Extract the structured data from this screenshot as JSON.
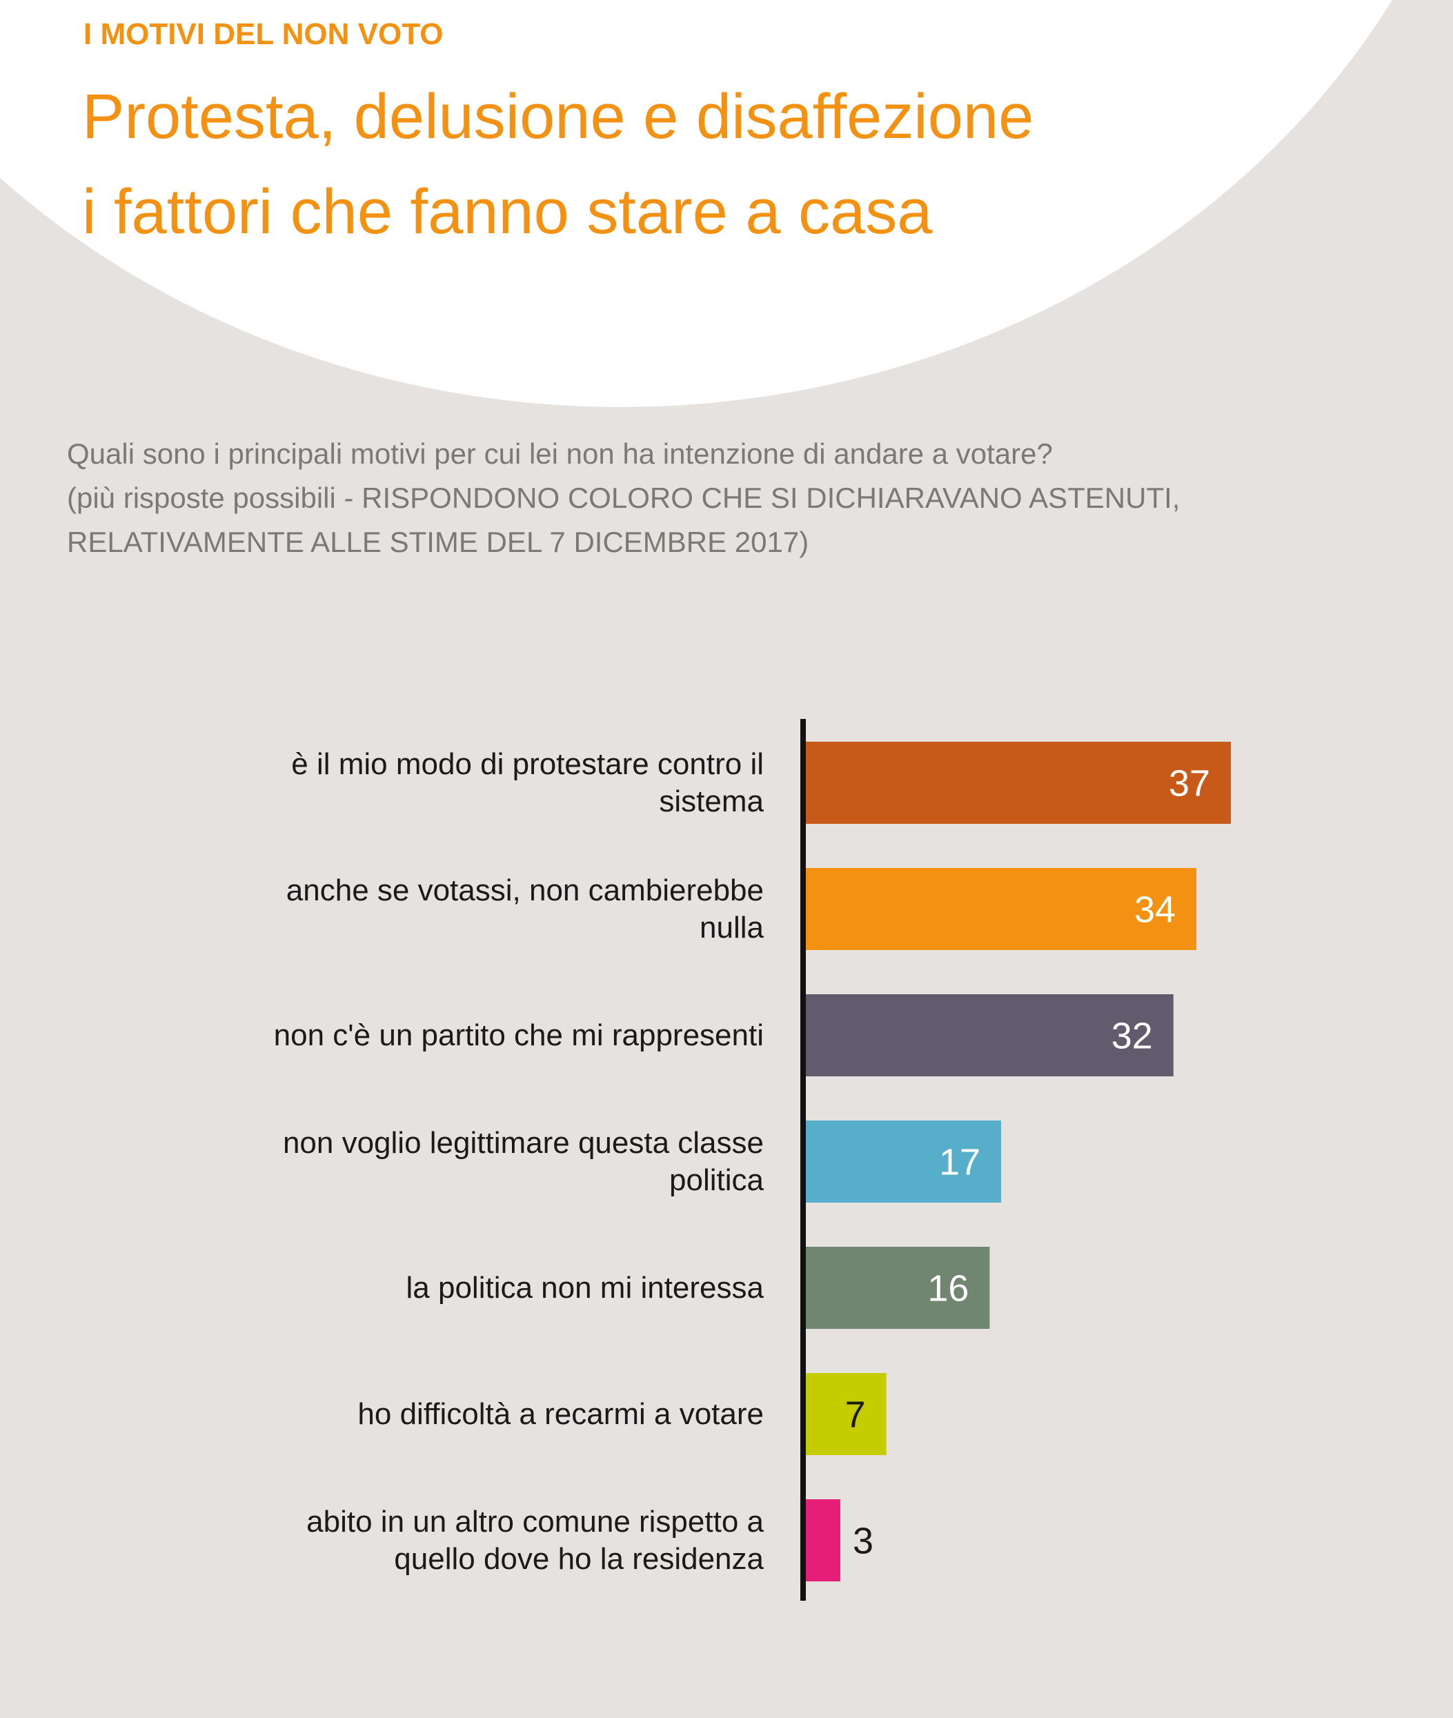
{
  "chart_data": {
    "type": "bar",
    "orientation": "horizontal",
    "kicker": "I MOTIVI DEL NON VOTO",
    "title": [
      "Protesta, delusione e disaffezione",
      "i fattori che fanno stare a casa"
    ],
    "subtitle": [
      "Quali sono i principali motivi per cui lei non ha intenzione di andare a votare?",
      "(più risposte possibili - RISPONDONO COLORO CHE SI DICHIARAVANO ASTENUTI,",
      "RELATIVAMENTE ALLE STIME DEL 7 DICEMBRE 2017)"
    ],
    "categories": [
      "è il mio modo di protestare contro il\nsistema",
      "anche se votassi, non cambierebbe\nnulla",
      "non c'è un partito che mi rappresenti",
      "non voglio legittimare questa classe\npolitica",
      "la politica non mi interessa",
      "ho difficoltà a recarmi a votare",
      "abito in un altro comune rispetto a\nquello dove ho la residenza"
    ],
    "values": [
      37,
      34,
      32,
      17,
      16,
      7,
      3
    ],
    "colors": [
      "#c85a19",
      "#f39212",
      "#625a6d",
      "#57aecb",
      "#718670",
      "#c5cd00",
      "#e61e78"
    ]
  }
}
